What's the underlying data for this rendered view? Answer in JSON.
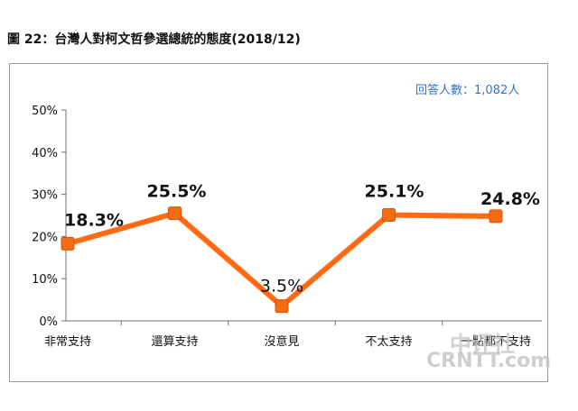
{
  "header": {
    "title": "圖 22：台灣人對柯文哲參選總統的態度(2018/12)"
  },
  "respondents_label": "回答人數：1,082人",
  "watermark": {
    "cn": "中评社",
    "en": "CRNTT.com"
  },
  "colors": {
    "line": "#ff6a13",
    "marker": "#f36b12",
    "marker_edge": "#d9550a",
    "axis": "#6e6e6e",
    "respondents": "#2e75d8"
  },
  "chart_data": {
    "type": "line",
    "title": "",
    "xlabel": "",
    "ylabel": "",
    "categories": [
      "非常支持",
      "還算支持",
      "沒意見",
      "不太支持",
      "一點都不支持"
    ],
    "values": [
      18.3,
      25.5,
      3.5,
      25.1,
      24.8
    ],
    "data_labels": [
      "18.3%",
      "25.5%",
      "3.5%",
      "25.1%",
      "24.8%"
    ],
    "yticks": [
      "0%",
      "10%",
      "20%",
      "30%",
      "40%",
      "50%"
    ],
    "ylim": [
      0,
      50
    ],
    "grid": false,
    "legend": "none"
  }
}
